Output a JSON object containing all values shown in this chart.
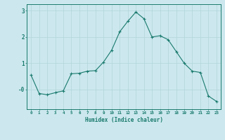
{
  "x": [
    0,
    1,
    2,
    3,
    4,
    5,
    6,
    7,
    8,
    9,
    10,
    11,
    12,
    13,
    14,
    15,
    16,
    17,
    18,
    19,
    20,
    21,
    22,
    23
  ],
  "y": [
    0.55,
    -0.15,
    -0.2,
    -0.12,
    -0.05,
    0.6,
    0.62,
    0.7,
    0.72,
    1.05,
    1.5,
    2.2,
    2.6,
    2.95,
    2.7,
    2.0,
    2.05,
    1.9,
    1.45,
    1.0,
    0.7,
    0.65,
    -0.25,
    -0.45
  ],
  "line_color": "#1a7a6e",
  "marker": "+",
  "marker_size": 3,
  "bg_color": "#cce8ee",
  "grid_color": "#b0d4da",
  "axis_color": "#1a7a6e",
  "xlabel": "Humidex (Indice chaleur)",
  "xlim": [
    -0.5,
    23.5
  ],
  "ylim": [
    -0.75,
    3.25
  ],
  "figsize": [
    3.2,
    2.0
  ],
  "dpi": 100
}
